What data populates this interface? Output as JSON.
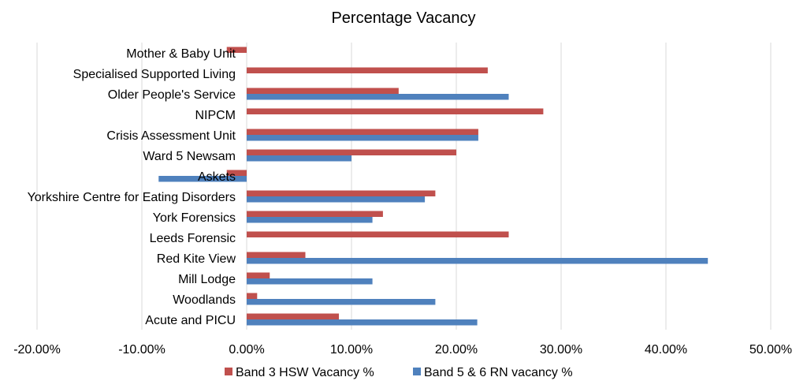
{
  "chart_data": {
    "type": "bar",
    "orientation": "horizontal",
    "title": "Percentage Vacancy",
    "xlabel": "",
    "ylabel": "",
    "xlim": [
      -0.2,
      0.5
    ],
    "x_ticks": [
      -0.2,
      -0.1,
      0.0,
      0.1,
      0.2,
      0.3,
      0.4,
      0.5
    ],
    "x_tick_labels": [
      "-20.00%",
      "-10.00%",
      "0.00%",
      "10.00%",
      "20.00%",
      "30.00%",
      "40.00%",
      "50.00%"
    ],
    "grid": "vertical",
    "legend_position": "bottom",
    "categories": [
      "Mother & Baby Unit",
      "Specialised Supported Living",
      "Older People's Service",
      "NIPCM",
      "Crisis Assessment Unit",
      "Ward 5 Newsam",
      "Askets",
      "Yorkshire Centre for Eating Disorders",
      "York Forensics",
      "Leeds Forensic",
      "Red Kite View",
      "Mill Lodge",
      "Woodlands",
      "Acute and PICU"
    ],
    "series": [
      {
        "name": "Band 3 HSW Vacancy %",
        "color": "#c0504d",
        "values": [
          -0.019,
          0.23,
          0.145,
          0.283,
          0.221,
          0.2,
          -0.019,
          0.18,
          0.13,
          0.25,
          0.056,
          0.022,
          0.01,
          0.088
        ]
      },
      {
        "name": "Band 5 & 6 RN vacancy %",
        "color": "#4f81bd",
        "values": [
          0.0,
          0.0,
          0.25,
          0.0,
          0.221,
          0.1,
          -0.084,
          0.17,
          0.12,
          0.0,
          0.44,
          0.12,
          0.18,
          0.22
        ]
      }
    ]
  }
}
